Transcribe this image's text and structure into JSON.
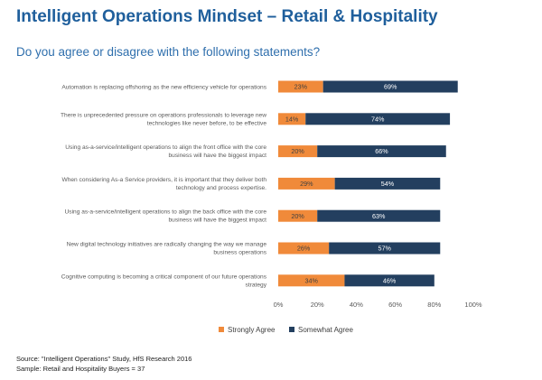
{
  "header": {
    "title": "Intelligent Operations Mindset – Retail & Hospitality",
    "subtitle": "Do you agree or disagree with the following statements?"
  },
  "colors": {
    "strongly_agree": "#f08a3a",
    "somewhat_agree": "#233f5f"
  },
  "chart_data": {
    "type": "bar",
    "orientation": "horizontal",
    "stacked": true,
    "categories": [
      [
        "Automation is replacing offshoring as the new efficiency vehicle for operations"
      ],
      [
        "There is unprecedented pressure on operations professionals to leverage new",
        "technologies like never before, to be effective"
      ],
      [
        "Using as-a-service/intelligent operations to align the front office with the core",
        "business will have the biggest impact"
      ],
      [
        "When considering As-a Service providers, it is important that they deliver both",
        "technology and process expertise."
      ],
      [
        "Using as-a-service/intelligent operations to align the back office with the core",
        "business will have the biggest impact"
      ],
      [
        "New digital technology initiatives are radically changing the way we manage",
        "business operations"
      ],
      [
        "Cognitive computing is becoming a critical component of our future operations",
        "strategy"
      ]
    ],
    "series": [
      {
        "name": "Strongly Agree",
        "values": [
          23,
          14,
          20,
          29,
          20,
          26,
          34
        ]
      },
      {
        "name": "Somewhat Agree",
        "values": [
          69,
          74,
          66,
          54,
          63,
          57,
          46
        ]
      }
    ],
    "xlim": [
      0,
      100
    ],
    "xticks": [
      "0%",
      "20%",
      "40%",
      "60%",
      "80%",
      "100%"
    ],
    "value_suffix": "%",
    "legend_position": "bottom",
    "grid": false
  },
  "footer": {
    "source": "Source: \"Intelligent Operations\" Study, HfS Research 2016",
    "sample": "Sample: Retail and Hospitality Buyers = 37"
  }
}
